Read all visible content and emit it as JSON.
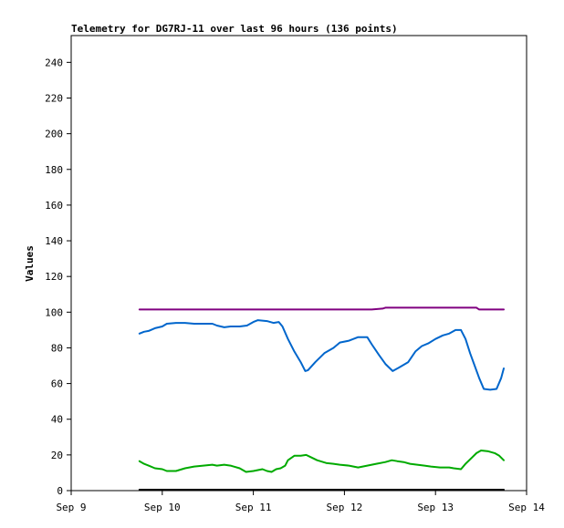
{
  "chart_data": {
    "type": "line",
    "title": "Telemetry for DG7RJ-11 over last 96 hours (136 points)",
    "xlabel": "",
    "ylabel": "Values",
    "ylim": [
      0,
      255
    ],
    "xlim": [
      9.0,
      14.0
    ],
    "yticks": [
      0,
      20,
      40,
      60,
      80,
      100,
      120,
      140,
      160,
      180,
      200,
      220,
      240
    ],
    "xticks": [
      {
        "value": 9,
        "label": "Sep 9"
      },
      {
        "value": 10,
        "label": "Sep 10"
      },
      {
        "value": 11,
        "label": "Sep 11"
      },
      {
        "value": 12,
        "label": "Sep 12"
      },
      {
        "value": 13,
        "label": "Sep 13"
      },
      {
        "value": 14,
        "label": "Sep 14"
      }
    ],
    "grid": false,
    "series": [
      {
        "color": "#800080",
        "points": [
          [
            9.75,
            101.5
          ],
          [
            10.0,
            101.5
          ],
          [
            10.5,
            101.5
          ],
          [
            11.0,
            101.5
          ],
          [
            11.5,
            101.5
          ],
          [
            12.0,
            101.5
          ],
          [
            12.3,
            101.5
          ],
          [
            12.42,
            102
          ],
          [
            12.45,
            102.5
          ],
          [
            12.8,
            102.5
          ],
          [
            13.2,
            102.5
          ],
          [
            13.45,
            102.5
          ],
          [
            13.48,
            101.5
          ],
          [
            13.75,
            101.5
          ]
        ]
      },
      {
        "color": "#0066cc",
        "points": [
          [
            9.75,
            88
          ],
          [
            9.8,
            89
          ],
          [
            9.85,
            89.5
          ],
          [
            9.92,
            91
          ],
          [
            10.0,
            92
          ],
          [
            10.05,
            93.5
          ],
          [
            10.15,
            94
          ],
          [
            10.25,
            94
          ],
          [
            10.35,
            93.5
          ],
          [
            10.45,
            93.5
          ],
          [
            10.55,
            93.5
          ],
          [
            10.6,
            92.5
          ],
          [
            10.68,
            91.5
          ],
          [
            10.75,
            92
          ],
          [
            10.85,
            92
          ],
          [
            10.93,
            92.5
          ],
          [
            11.0,
            94.5
          ],
          [
            11.05,
            95.5
          ],
          [
            11.15,
            95
          ],
          [
            11.22,
            94
          ],
          [
            11.28,
            94.5
          ],
          [
            11.32,
            92
          ],
          [
            11.38,
            85
          ],
          [
            11.45,
            78
          ],
          [
            11.52,
            72
          ],
          [
            11.57,
            67
          ],
          [
            11.6,
            67.5
          ],
          [
            11.68,
            72
          ],
          [
            11.78,
            77
          ],
          [
            11.88,
            80
          ],
          [
            11.95,
            83
          ],
          [
            12.05,
            84
          ],
          [
            12.15,
            86
          ],
          [
            12.25,
            86
          ],
          [
            12.3,
            82
          ],
          [
            12.38,
            76
          ],
          [
            12.45,
            71
          ],
          [
            12.53,
            67
          ],
          [
            12.6,
            69
          ],
          [
            12.7,
            72
          ],
          [
            12.78,
            78
          ],
          [
            12.85,
            81
          ],
          [
            12.92,
            82.5
          ],
          [
            13.0,
            85
          ],
          [
            13.08,
            87
          ],
          [
            13.15,
            88
          ],
          [
            13.22,
            90
          ],
          [
            13.28,
            90
          ],
          [
            13.33,
            85
          ],
          [
            13.38,
            77
          ],
          [
            13.43,
            70
          ],
          [
            13.48,
            63
          ],
          [
            13.53,
            57
          ],
          [
            13.6,
            56.5
          ],
          [
            13.67,
            57
          ],
          [
            13.72,
            63
          ],
          [
            13.75,
            68.5
          ]
        ]
      },
      {
        "color": "#00aa00",
        "points": [
          [
            9.75,
            16.5
          ],
          [
            9.8,
            15
          ],
          [
            9.85,
            14
          ],
          [
            9.92,
            12.5
          ],
          [
            10.0,
            12
          ],
          [
            10.05,
            11
          ],
          [
            10.15,
            11
          ],
          [
            10.25,
            12.5
          ],
          [
            10.35,
            13.5
          ],
          [
            10.45,
            14
          ],
          [
            10.55,
            14.5
          ],
          [
            10.6,
            14
          ],
          [
            10.68,
            14.5
          ],
          [
            10.75,
            14
          ],
          [
            10.85,
            12.5
          ],
          [
            10.92,
            10.5
          ],
          [
            11.0,
            11
          ],
          [
            11.05,
            11.5
          ],
          [
            11.1,
            12
          ],
          [
            11.15,
            11
          ],
          [
            11.2,
            10.5
          ],
          [
            11.25,
            12
          ],
          [
            11.3,
            12.5
          ],
          [
            11.35,
            14
          ],
          [
            11.38,
            17
          ],
          [
            11.45,
            19.5
          ],
          [
            11.52,
            19.5
          ],
          [
            11.58,
            20
          ],
          [
            11.62,
            19
          ],
          [
            11.7,
            17
          ],
          [
            11.8,
            15.5
          ],
          [
            11.88,
            15
          ],
          [
            11.95,
            14.5
          ],
          [
            12.05,
            14
          ],
          [
            12.15,
            13
          ],
          [
            12.25,
            14
          ],
          [
            12.35,
            15
          ],
          [
            12.45,
            16
          ],
          [
            12.52,
            17
          ],
          [
            12.58,
            16.5
          ],
          [
            12.65,
            16
          ],
          [
            12.72,
            15
          ],
          [
            12.8,
            14.5
          ],
          [
            12.88,
            14
          ],
          [
            12.95,
            13.5
          ],
          [
            13.05,
            13
          ],
          [
            13.15,
            13
          ],
          [
            13.2,
            12.5
          ],
          [
            13.28,
            12
          ],
          [
            13.33,
            15
          ],
          [
            13.4,
            18.5
          ],
          [
            13.45,
            21
          ],
          [
            13.5,
            22.5
          ],
          [
            13.58,
            22
          ],
          [
            13.65,
            21
          ],
          [
            13.7,
            19.5
          ],
          [
            13.75,
            17
          ]
        ]
      },
      {
        "color": "#000000",
        "points": [
          [
            9.75,
            0.5
          ],
          [
            11.5,
            0.5
          ],
          [
            13.75,
            0.5
          ]
        ]
      }
    ]
  }
}
